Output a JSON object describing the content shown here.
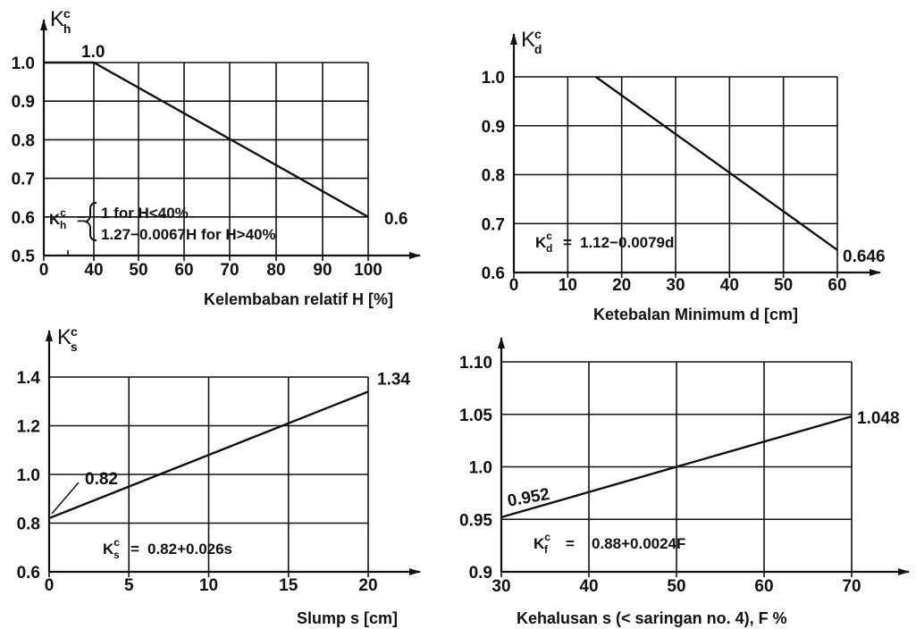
{
  "chart_data": [
    {
      "type": "line",
      "ylabel": "K",
      "ylabel_sup": "c",
      "ylabel_sub": "h",
      "xlabel": "Kelembaban relatif H [%]",
      "x_ticks": [
        "0",
        "40",
        "50",
        "60",
        "70",
        "80",
        "90",
        "100"
      ],
      "y_ticks": [
        "0.5",
        "0.6",
        "0.7",
        "0.8",
        "0.9",
        "1.0"
      ],
      "xlim": [
        0,
        100
      ],
      "ylim": [
        0.5,
        1.0
      ],
      "grid": true,
      "series": [
        {
          "x": [
            0,
            40,
            100
          ],
          "y": [
            1.0,
            1.0,
            0.6
          ]
        }
      ],
      "annotations": [
        {
          "text": "1.0",
          "x": 40,
          "y": 1.0
        },
        {
          "text": "0.6",
          "x": 100,
          "y": 0.6
        }
      ],
      "formula": {
        "lhs_main": "K",
        "lhs_sup": "c",
        "lhs_sub": "h",
        "eq": "=",
        "line1": "1  for  H<40%",
        "line2": "1.27−0.0067H  for  H>40%"
      }
    },
    {
      "type": "line",
      "ylabel": "K",
      "ylabel_sup": "c",
      "ylabel_sub": "d",
      "xlabel": "Ketebalan Minimum d [cm]",
      "x_ticks": [
        "0",
        "10",
        "20",
        "30",
        "40",
        "50",
        "60"
      ],
      "y_ticks": [
        "0.6",
        "0.7",
        "0.8",
        "0.9",
        "1.0"
      ],
      "xlim": [
        0,
        60
      ],
      "ylim": [
        0.6,
        1.0
      ],
      "grid": true,
      "series": [
        {
          "x": [
            15.2,
            60
          ],
          "y": [
            1.0,
            0.646
          ]
        }
      ],
      "annotations": [
        {
          "text": "0.646",
          "x": 60,
          "y": 0.646
        }
      ],
      "formula": {
        "lhs_main": "K",
        "lhs_sup": "c",
        "lhs_sub": "d",
        "eq": "=",
        "line1": "1.12−0.0079d"
      }
    },
    {
      "type": "line",
      "ylabel": "K",
      "ylabel_sup": "c",
      "ylabel_sub": "s",
      "xlabel": "Slump  s  [cm]",
      "x_ticks": [
        "0",
        "5",
        "10",
        "15",
        "20"
      ],
      "y_ticks": [
        "0.6",
        "0.8",
        "1.0",
        "1.2",
        "1.4"
      ],
      "xlim": [
        0,
        20
      ],
      "ylim": [
        0.6,
        1.4
      ],
      "grid": true,
      "series": [
        {
          "x": [
            0,
            20
          ],
          "y": [
            0.82,
            1.34
          ]
        }
      ],
      "annotations": [
        {
          "text": "1.34",
          "x": 20,
          "y": 1.34
        },
        {
          "text": "0.82",
          "x": 0,
          "y": 0.82
        }
      ],
      "formula": {
        "lhs_main": "K",
        "lhs_sup": "c",
        "lhs_sub": "s",
        "eq": "=",
        "line1": "0.82+0.026s"
      }
    },
    {
      "type": "line",
      "ylabel": "",
      "xlabel": "Kehalusan  s (< saringan no. 4), F %",
      "x_ticks": [
        "30",
        "40",
        "50",
        "60",
        "70"
      ],
      "y_ticks": [
        "0.9",
        "0.95",
        "1.0",
        "1.05",
        "1.10"
      ],
      "xlim": [
        30,
        70
      ],
      "ylim": [
        0.9,
        1.1
      ],
      "grid": true,
      "series": [
        {
          "x": [
            30,
            70
          ],
          "y": [
            0.952,
            1.048
          ]
        }
      ],
      "annotations": [
        {
          "text": "1.048",
          "x": 70,
          "y": 1.048
        },
        {
          "text": "0.952",
          "x": 30,
          "y": 0.952
        }
      ],
      "formula": {
        "lhs_main": "K",
        "lhs_sup": "c",
        "lhs_sub": "f",
        "eq": "=",
        "line1": "0.88+0.0024F"
      }
    }
  ]
}
